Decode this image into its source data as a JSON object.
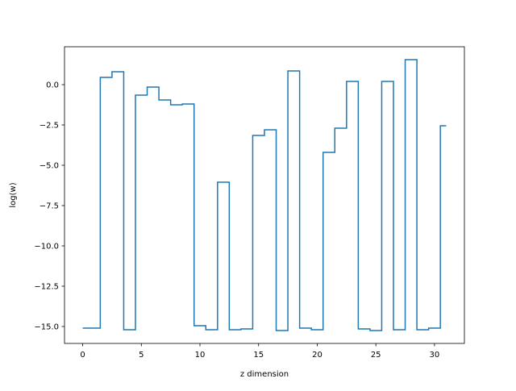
{
  "chart_data": {
    "type": "line",
    "drawstyle": "steps-mid",
    "title": "",
    "xlabel": "z dimension",
    "ylabel": "log(w)",
    "xlim": [
      -1.55,
      32.55
    ],
    "ylim": [
      -16.05,
      2.35
    ],
    "xticks": [
      0,
      5,
      10,
      15,
      20,
      25,
      30
    ],
    "xtick_labels": [
      "0",
      "5",
      "10",
      "15",
      "20",
      "25",
      "30"
    ],
    "yticks": [
      0.0,
      -2.5,
      -5.0,
      -7.5,
      -10.0,
      -12.5,
      -15.0
    ],
    "ytick_labels": [
      "0.0",
      "−2.5",
      "−5.0",
      "−7.5",
      "−10.0",
      "−12.5",
      "−15.0"
    ],
    "grid": false,
    "legend": "none",
    "series": [
      {
        "color": "#1f77b4",
        "x": [
          0,
          1,
          2,
          3,
          4,
          5,
          6,
          7,
          8,
          9,
          10,
          11,
          12,
          13,
          14,
          15,
          16,
          17,
          18,
          19,
          20,
          21,
          22,
          23,
          24,
          25,
          26,
          27,
          28,
          29,
          30,
          31
        ],
        "values": [
          -15.1,
          -15.1,
          0.45,
          0.8,
          -15.2,
          -0.65,
          -0.15,
          -0.95,
          -1.25,
          -1.2,
          -14.95,
          -15.2,
          -6.05,
          -15.2,
          -15.15,
          -3.15,
          -2.8,
          -15.25,
          0.85,
          -15.1,
          -15.2,
          -4.2,
          -2.7,
          0.2,
          -15.15,
          -15.25,
          0.2,
          -15.2,
          1.55,
          -15.2,
          -15.1,
          -2.55
        ]
      }
    ]
  }
}
